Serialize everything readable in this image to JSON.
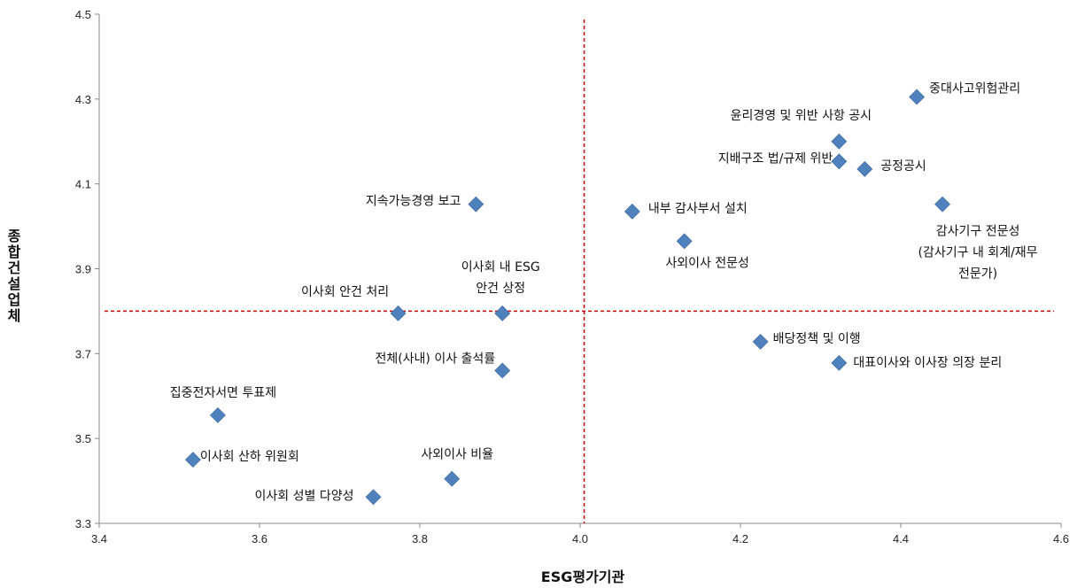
{
  "chart_data": {
    "type": "scatter",
    "xlabel": "ESG평가기관",
    "ylabel": "종합건설업체",
    "xlim": [
      3.4,
      4.6
    ],
    "ylim": [
      3.3,
      4.5
    ],
    "xticks": [
      "3.4",
      "3.6",
      "3.8",
      "4.0",
      "4.2",
      "4.4",
      "4.6"
    ],
    "yticks": [
      "3.3",
      "3.5",
      "3.7",
      "3.9",
      "4.1",
      "4.3",
      "4.5"
    ],
    "reference_lines": {
      "x": 4.005,
      "y": 3.8
    },
    "marker_color": "#4F81BD",
    "reference_line_color": "#CC0000",
    "grid": false,
    "points": [
      {
        "label": [
          "중대사고위험관리"
        ],
        "x": 4.42,
        "y": 4.305
      },
      {
        "label": [
          "윤리경영 및 위반 사항 공시"
        ],
        "x": 4.323,
        "y": 4.2
      },
      {
        "label": [
          "지배구조 법/규제 위반"
        ],
        "x": 4.323,
        "y": 4.153
      },
      {
        "label": [
          "공정공시"
        ],
        "x": 4.355,
        "y": 4.135
      },
      {
        "label": [
          "지속가능경영 보고"
        ],
        "x": 3.87,
        "y": 4.052
      },
      {
        "label": [
          "내부 감사부서 설치"
        ],
        "x": 4.065,
        "y": 4.035
      },
      {
        "label": [
          "감사기구 전문성",
          "(감사기구 내 회계/재무",
          "전문가)"
        ],
        "x": 4.452,
        "y": 4.052
      },
      {
        "label": [
          "사외이사 전문성"
        ],
        "x": 4.13,
        "y": 3.965
      },
      {
        "label": [
          "이사회 안건 처리"
        ],
        "x": 3.773,
        "y": 3.795
      },
      {
        "label": [
          "이사회 내 ESG",
          "안건 상정"
        ],
        "x": 3.903,
        "y": 3.795
      },
      {
        "label": [
          "배당정책 및 이행"
        ],
        "x": 4.225,
        "y": 3.728
      },
      {
        "label": [
          "대표이사와 이사장 의장 분리"
        ],
        "x": 4.323,
        "y": 3.678
      },
      {
        "label": [
          "전체(사내) 이사 출석률"
        ],
        "x": 3.903,
        "y": 3.66
      },
      {
        "label": [
          "집중전자서면 투표제"
        ],
        "x": 3.548,
        "y": 3.555
      },
      {
        "label": [
          "이사회 산하 위원회"
        ],
        "x": 3.517,
        "y": 3.45
      },
      {
        "label": [
          "사외이사 비율"
        ],
        "x": 3.84,
        "y": 3.405
      },
      {
        "label": [
          "이사회 성별 다양성"
        ],
        "x": 3.742,
        "y": 3.362
      }
    ]
  }
}
